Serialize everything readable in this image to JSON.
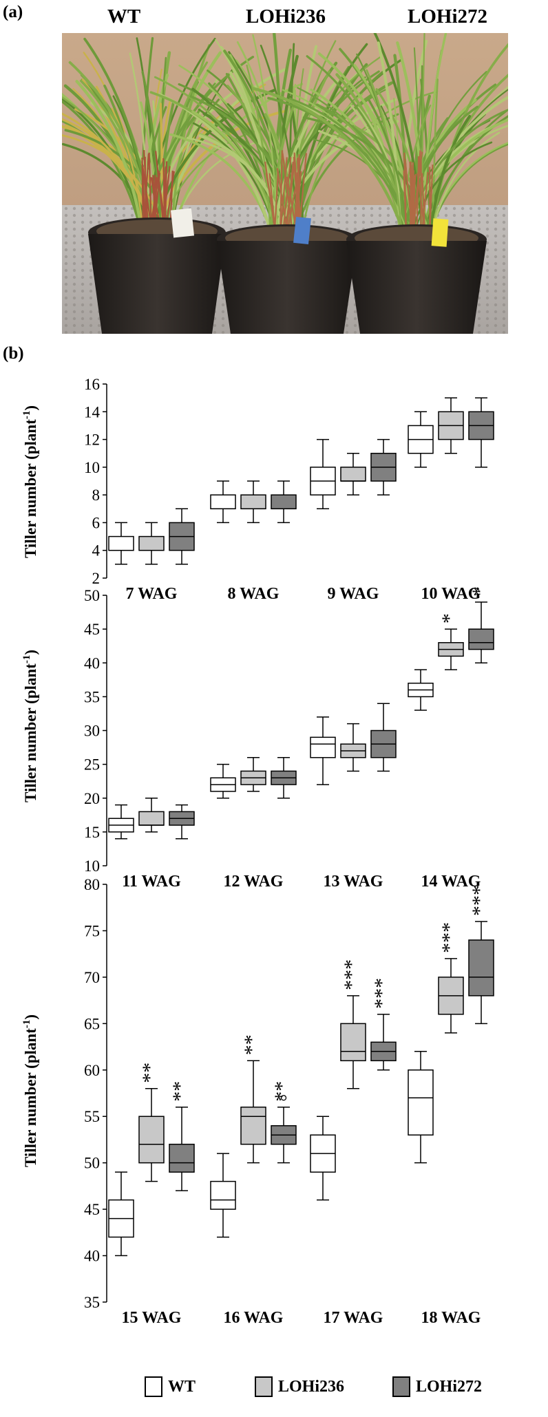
{
  "panel_a": {
    "label": "(a)",
    "genotypes": [
      "WT",
      "LOHi236",
      "LOHi272"
    ]
  },
  "panel_b": {
    "label": "(b)"
  },
  "legend": [
    {
      "name": "WT",
      "color": "#ffffff"
    },
    {
      "name": "LOHi236",
      "color": "#c8c8c8"
    },
    {
      "name": "LOHi272",
      "color": "#808080"
    }
  ],
  "chart_data": [
    {
      "type": "box",
      "ylabel": "Tiller number (plant-1)",
      "ylim": [
        2,
        16
      ],
      "yticks": [
        2,
        4,
        6,
        8,
        10,
        12,
        14,
        16
      ],
      "categories": [
        "7 WAG",
        "8 WAG",
        "9 WAG",
        "10 WAG"
      ],
      "series": [
        {
          "name": "WT",
          "boxes": [
            {
              "min": 3,
              "q1": 4,
              "median": 4,
              "q3": 5,
              "max": 6
            },
            {
              "min": 6,
              "q1": 7,
              "median": 7,
              "q3": 8,
              "max": 9
            },
            {
              "min": 7,
              "q1": 8,
              "median": 9,
              "q3": 10,
              "max": 12
            },
            {
              "min": 10,
              "q1": 11,
              "median": 12,
              "q3": 13,
              "max": 14
            }
          ]
        },
        {
          "name": "LOHi236",
          "boxes": [
            {
              "min": 3,
              "q1": 4,
              "median": 4,
              "q3": 5,
              "max": 6
            },
            {
              "min": 6,
              "q1": 7,
              "median": 7,
              "q3": 8,
              "max": 9
            },
            {
              "min": 8,
              "q1": 9,
              "median": 9,
              "q3": 10,
              "max": 11
            },
            {
              "min": 11,
              "q1": 12,
              "median": 13,
              "q3": 14,
              "max": 15
            }
          ]
        },
        {
          "name": "LOHi272",
          "boxes": [
            {
              "min": 3,
              "q1": 4,
              "median": 5,
              "q3": 6,
              "max": 7
            },
            {
              "min": 6,
              "q1": 7,
              "median": 7,
              "q3": 8,
              "max": 9
            },
            {
              "min": 8,
              "q1": 9,
              "median": 10,
              "q3": 11,
              "max": 12
            },
            {
              "min": 10,
              "q1": 12,
              "median": 13,
              "q3": 14,
              "max": 15
            }
          ]
        }
      ]
    },
    {
      "type": "box",
      "ylabel": "Tiller number (plant-1)",
      "ylim": [
        10,
        50
      ],
      "yticks": [
        10,
        15,
        20,
        25,
        30,
        35,
        40,
        45,
        50
      ],
      "categories": [
        "11 WAG",
        "12 WAG",
        "13 WAG",
        "14 WAG"
      ],
      "series": [
        {
          "name": "WT",
          "boxes": [
            {
              "min": 14,
              "q1": 15,
              "median": 16,
              "q3": 17,
              "max": 19
            },
            {
              "min": 20,
              "q1": 21,
              "median": 22,
              "q3": 23,
              "max": 25
            },
            {
              "min": 22,
              "q1": 26,
              "median": 28,
              "q3": 29,
              "max": 32
            },
            {
              "min": 33,
              "q1": 35,
              "median": 36,
              "q3": 37,
              "max": 39
            }
          ]
        },
        {
          "name": "LOHi236",
          "boxes": [
            {
              "min": 15,
              "q1": 16,
              "median": 16,
              "q3": 18,
              "max": 20
            },
            {
              "min": 21,
              "q1": 22,
              "median": 23,
              "q3": 24,
              "max": 26
            },
            {
              "min": 24,
              "q1": 26,
              "median": 27,
              "q3": 28,
              "max": 31
            },
            {
              "min": 39,
              "q1": 41,
              "median": 42,
              "q3": 43,
              "max": 45,
              "sig": "*"
            }
          ]
        },
        {
          "name": "LOHi272",
          "boxes": [
            {
              "min": 14,
              "q1": 16,
              "median": 17,
              "q3": 18,
              "max": 19
            },
            {
              "min": 20,
              "q1": 22,
              "median": 23,
              "q3": 24,
              "max": 26
            },
            {
              "min": 24,
              "q1": 26,
              "median": 28,
              "q3": 30,
              "max": 34
            },
            {
              "min": 40,
              "q1": 42,
              "median": 43,
              "q3": 45,
              "max": 49,
              "sig": "*"
            }
          ]
        }
      ]
    },
    {
      "type": "box",
      "ylabel": "Tiller number (plant-1)",
      "ylim": [
        35,
        80
      ],
      "yticks": [
        35,
        40,
        45,
        50,
        55,
        60,
        65,
        70,
        75,
        80
      ],
      "categories": [
        "15 WAG",
        "16 WAG",
        "17 WAG",
        "18 WAG"
      ],
      "series": [
        {
          "name": "WT",
          "boxes": [
            {
              "min": 40,
              "q1": 42,
              "median": 44,
              "q3": 46,
              "max": 49
            },
            {
              "min": 42,
              "q1": 45,
              "median": 46,
              "q3": 48,
              "max": 51
            },
            {
              "min": 46,
              "q1": 49,
              "median": 51,
              "q3": 53,
              "max": 55
            },
            {
              "min": 50,
              "q1": 53,
              "median": 57,
              "q3": 60,
              "max": 62
            }
          ]
        },
        {
          "name": "LOHi236",
          "boxes": [
            {
              "min": 48,
              "q1": 50,
              "median": 52,
              "q3": 55,
              "max": 58,
              "sig": "**"
            },
            {
              "min": 50,
              "q1": 52,
              "median": 55,
              "q3": 56,
              "max": 61,
              "sig": "**"
            },
            {
              "min": 58,
              "q1": 61,
              "median": 62,
              "q3": 65,
              "max": 68,
              "sig": "***"
            },
            {
              "min": 64,
              "q1": 66,
              "median": 68,
              "q3": 70,
              "max": 72,
              "sig": "***"
            }
          ]
        },
        {
          "name": "LOHi272",
          "boxes": [
            {
              "min": 47,
              "q1": 49,
              "median": 50,
              "q3": 52,
              "max": 56,
              "sig": "**"
            },
            {
              "min": 50,
              "q1": 52,
              "median": 53,
              "q3": 54,
              "max": 56,
              "outliers": [
                57
              ],
              "sig": "**"
            },
            {
              "min": 60,
              "q1": 61,
              "median": 62,
              "q3": 63,
              "max": 66,
              "sig": "***"
            },
            {
              "min": 65,
              "q1": 68,
              "median": 70,
              "q3": 74,
              "max": 76,
              "sig": "***"
            }
          ]
        }
      ]
    }
  ]
}
